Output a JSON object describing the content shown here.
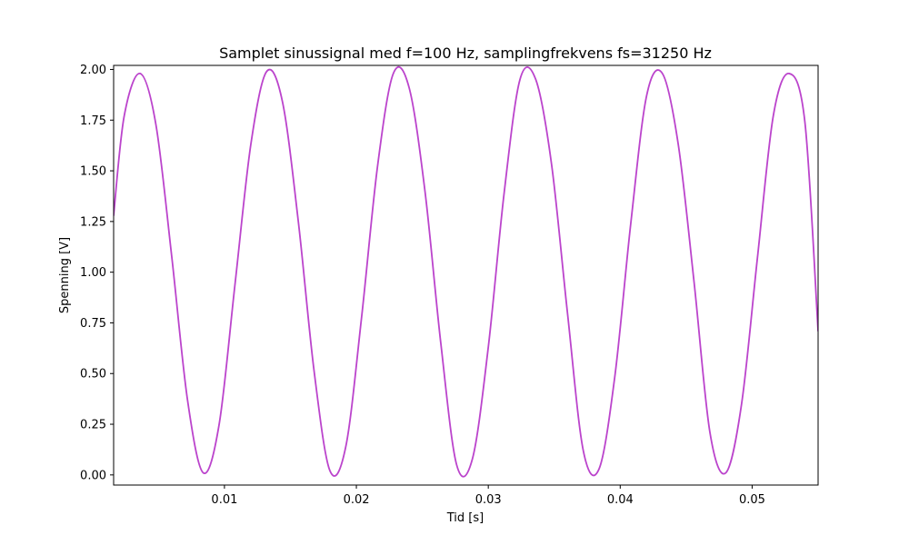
{
  "chart_data": {
    "type": "line",
    "title": "Samplet sinussignal med f=100 Hz, samplingfrekvens fs=31250 Hz",
    "xlabel": "Tid [s]",
    "ylabel": "Spenning [V]",
    "xlim": [
      0.0016,
      0.055
    ],
    "ylim": [
      -0.05,
      2.02
    ],
    "x_ticks": [
      0.01,
      0.02,
      0.03,
      0.04,
      0.05
    ],
    "x_tick_labels": [
      "0.01",
      "0.02",
      "0.03",
      "0.04",
      "0.05"
    ],
    "y_ticks": [
      0.0,
      0.25,
      0.5,
      0.75,
      1.0,
      1.25,
      1.5,
      1.75,
      2.0
    ],
    "y_tick_labels": [
      "0.00",
      "0.25",
      "0.50",
      "0.75",
      "1.00",
      "1.25",
      "1.50",
      "1.75",
      "2.00"
    ],
    "grid": false,
    "series": [
      {
        "color": "#bb44cc",
        "x": [
          0.0016,
          0.0024,
          0.0036,
          0.0048,
          0.006,
          0.0072,
          0.0084,
          0.0096,
          0.0108,
          0.012,
          0.0132,
          0.0144,
          0.0156,
          0.0168,
          0.018,
          0.0192,
          0.0204,
          0.0216,
          0.0228,
          0.024,
          0.0252,
          0.0264,
          0.0276,
          0.0288,
          0.03,
          0.0312,
          0.0324,
          0.0336,
          0.0348,
          0.036,
          0.0372,
          0.0384,
          0.0396,
          0.0408,
          0.042,
          0.0432,
          0.0444,
          0.0456,
          0.0468,
          0.048,
          0.0492,
          0.0504,
          0.0516,
          0.0528,
          0.054,
          0.055
        ],
        "y": [
          1.28,
          1.77,
          1.98,
          1.73,
          1.08,
          0.37,
          0.01,
          0.25,
          0.94,
          1.63,
          1.99,
          1.84,
          1.25,
          0.51,
          0.02,
          0.14,
          0.78,
          1.52,
          1.98,
          1.91,
          1.4,
          0.65,
          0.05,
          0.08,
          0.63,
          1.39,
          1.95,
          1.95,
          1.53,
          0.8,
          0.12,
          0.03,
          0.49,
          1.24,
          1.87,
          1.98,
          1.63,
          0.95,
          0.21,
          0.01,
          0.35,
          1.07,
          1.77,
          1.98,
          1.74,
          0.71
        ]
      }
    ]
  }
}
